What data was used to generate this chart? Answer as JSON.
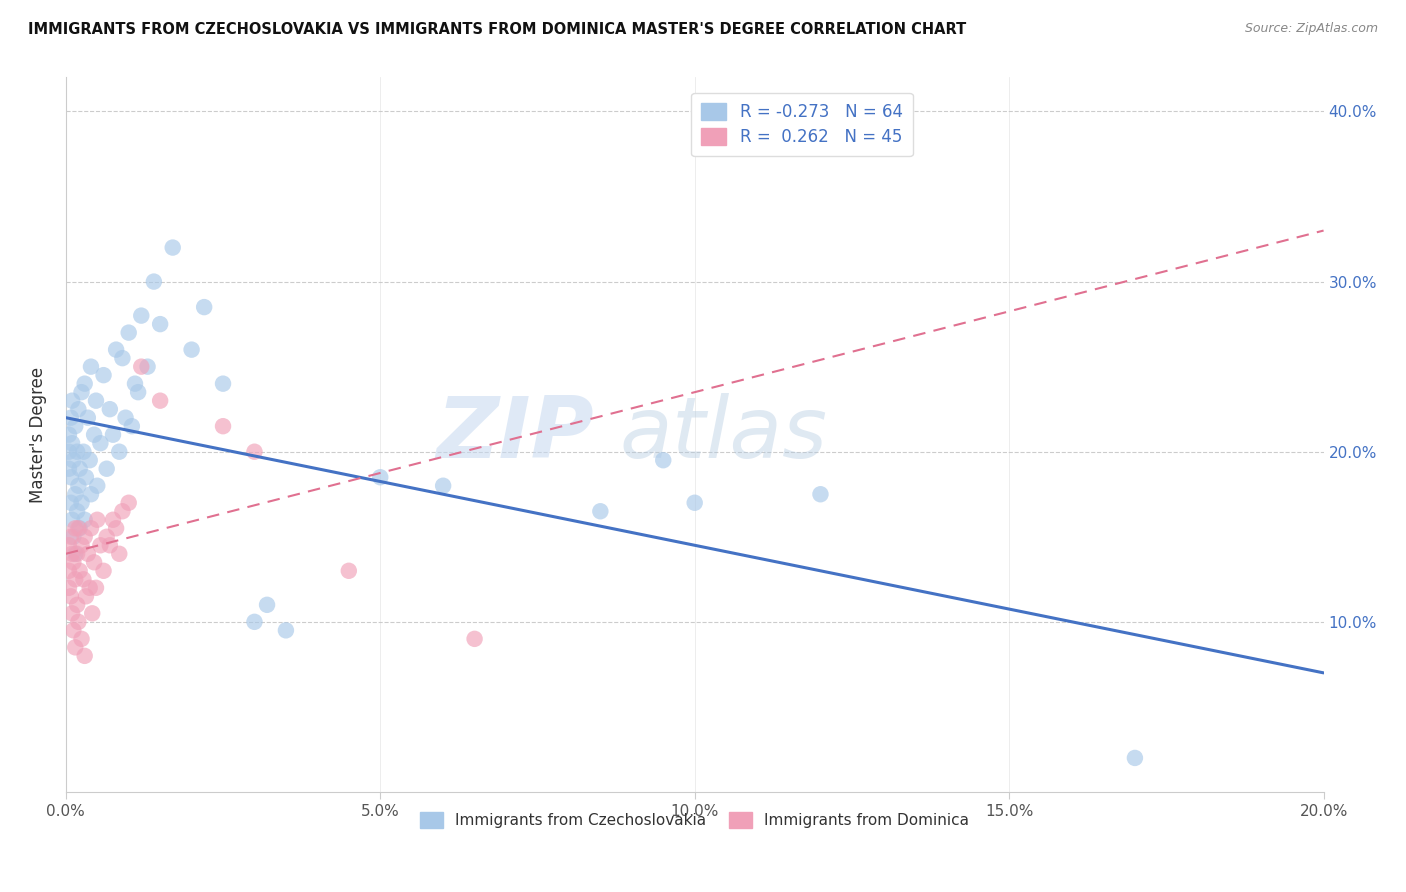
{
  "title": "IMMIGRANTS FROM CZECHOSLOVAKIA VS IMMIGRANTS FROM DOMINICA MASTER'S DEGREE CORRELATION CHART",
  "source": "Source: ZipAtlas.com",
  "ylabel": "Master's Degree",
  "x_tick_labels": [
    "0.0%",
    "",
    "",
    "",
    "",
    "5.0%",
    "",
    "",
    "",
    "",
    "10.0%",
    "",
    "",
    "",
    "",
    "15.0%",
    "",
    "",
    "",
    "",
    "20.0%"
  ],
  "x_tick_values": [
    0.0,
    1.0,
    2.0,
    3.0,
    4.0,
    5.0,
    6.0,
    7.0,
    8.0,
    9.0,
    10.0,
    11.0,
    12.0,
    13.0,
    14.0,
    15.0,
    16.0,
    17.0,
    18.0,
    19.0,
    20.0
  ],
  "y_tick_labels": [
    "10.0%",
    "20.0%",
    "30.0%",
    "40.0%"
  ],
  "y_tick_values": [
    10.0,
    20.0,
    30.0,
    40.0
  ],
  "xlim": [
    0.0,
    20.0
  ],
  "ylim": [
    0.0,
    42.0
  ],
  "legend_r1": "R = -0.273",
  "legend_n1": "N = 64",
  "legend_r2": "R =  0.262",
  "legend_n2": "N = 45",
  "color_blue": "#a8c8e8",
  "color_pink": "#f0a0b8",
  "color_blue_line": "#4472c4",
  "color_pink_line": "#e07090",
  "watermark_zip": "ZIP",
  "watermark_atlas": "atlas",
  "blue_scatter_x": [
    0.05,
    0.05,
    0.05,
    0.08,
    0.08,
    0.08,
    0.1,
    0.1,
    0.1,
    0.12,
    0.12,
    0.15,
    0.15,
    0.15,
    0.18,
    0.18,
    0.2,
    0.2,
    0.22,
    0.22,
    0.25,
    0.25,
    0.28,
    0.3,
    0.3,
    0.32,
    0.35,
    0.38,
    0.4,
    0.4,
    0.45,
    0.48,
    0.5,
    0.55,
    0.6,
    0.65,
    0.7,
    0.75,
    0.8,
    0.85,
    0.9,
    0.95,
    1.0,
    1.05,
    1.1,
    1.15,
    1.2,
    1.3,
    1.4,
    1.5,
    1.7,
    2.0,
    2.2,
    2.5,
    3.0,
    3.2,
    3.5,
    5.0,
    6.0,
    8.5,
    10.0,
    12.0,
    17.0,
    9.5
  ],
  "blue_scatter_y": [
    21.0,
    20.0,
    19.0,
    22.0,
    18.5,
    17.0,
    23.0,
    20.5,
    16.0,
    19.5,
    15.0,
    21.5,
    17.5,
    14.0,
    20.0,
    16.5,
    22.5,
    18.0,
    19.0,
    15.5,
    23.5,
    17.0,
    20.0,
    24.0,
    16.0,
    18.5,
    22.0,
    19.5,
    25.0,
    17.5,
    21.0,
    23.0,
    18.0,
    20.5,
    24.5,
    19.0,
    22.5,
    21.0,
    26.0,
    20.0,
    25.5,
    22.0,
    27.0,
    21.5,
    24.0,
    23.5,
    28.0,
    25.0,
    30.0,
    27.5,
    32.0,
    26.0,
    28.5,
    24.0,
    10.0,
    11.0,
    9.5,
    18.5,
    18.0,
    16.5,
    17.0,
    17.5,
    2.0,
    19.5
  ],
  "pink_scatter_x": [
    0.05,
    0.05,
    0.05,
    0.08,
    0.08,
    0.1,
    0.1,
    0.12,
    0.12,
    0.15,
    0.15,
    0.15,
    0.18,
    0.18,
    0.2,
    0.2,
    0.22,
    0.25,
    0.25,
    0.28,
    0.3,
    0.3,
    0.32,
    0.35,
    0.38,
    0.4,
    0.42,
    0.45,
    0.48,
    0.5,
    0.55,
    0.6,
    0.65,
    0.7,
    0.75,
    0.8,
    0.85,
    0.9,
    1.0,
    1.2,
    1.5,
    2.5,
    3.0,
    4.5,
    6.5
  ],
  "pink_scatter_y": [
    14.5,
    13.0,
    12.0,
    15.0,
    11.5,
    14.0,
    10.5,
    13.5,
    9.5,
    15.5,
    12.5,
    8.5,
    14.0,
    11.0,
    15.5,
    10.0,
    13.0,
    14.5,
    9.0,
    12.5,
    15.0,
    8.0,
    11.5,
    14.0,
    12.0,
    15.5,
    10.5,
    13.5,
    12.0,
    16.0,
    14.5,
    13.0,
    15.0,
    14.5,
    16.0,
    15.5,
    14.0,
    16.5,
    17.0,
    25.0,
    23.0,
    21.5,
    20.0,
    13.0,
    9.0
  ],
  "blue_line_x": [
    0.0,
    20.0
  ],
  "blue_line_y": [
    22.0,
    7.0
  ],
  "pink_line_x": [
    0.0,
    20.0
  ],
  "pink_line_y": [
    14.0,
    33.0
  ]
}
